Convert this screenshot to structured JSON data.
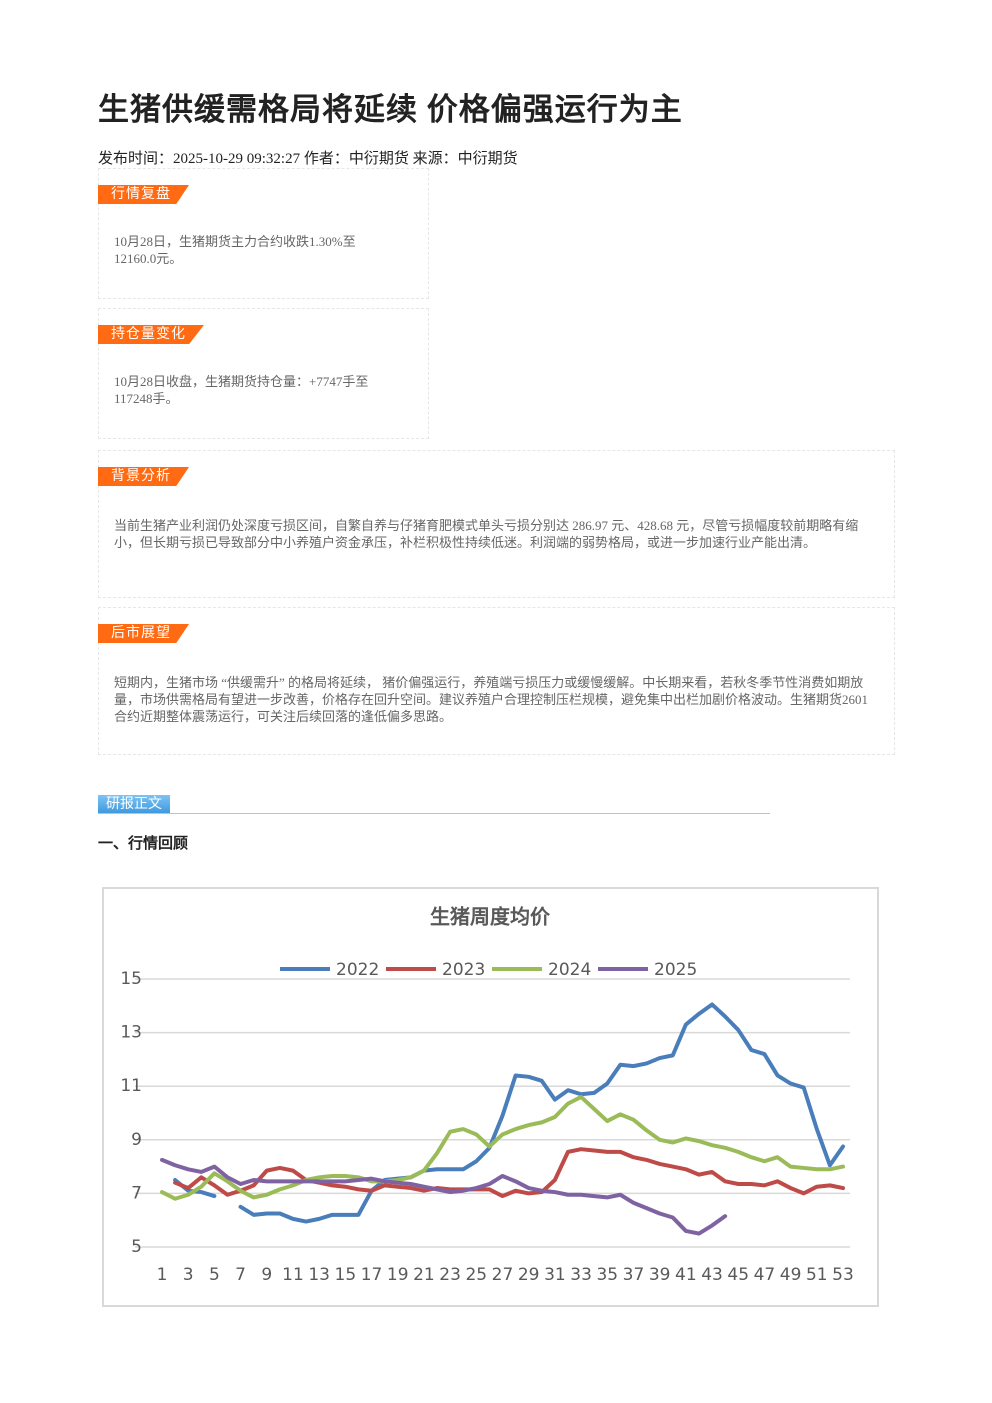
{
  "header": {
    "title": "生猪供缓需格局将延续 价格偏强运行为主",
    "meta": "发布时间：2025-10-29 09:32:27 作者：中衍期货 来源：中衍期货"
  },
  "sections": [
    {
      "tag": "行情复盘",
      "body": "10月28日，生猪期货主力合约收跌1.30%至12160.0元。"
    },
    {
      "tag": "持仓量变化",
      "body": "10月28日收盘，生猪期货持仓量：+7747手至117248手。"
    },
    {
      "tag": "背景分析",
      "body": "当前生猪产业利润仍处深度亏损区间，自繁自养与仔猪育肥模式单头亏损分别达 286.97 元、428.68 元，尽管亏损幅度较前期略有缩小，但长期亏损已导致部分中小养殖户资金承压，补栏积极性持续低迷。利润端的弱势格局，或进一步加速行业产能出清。"
    },
    {
      "tag": "后市展望",
      "body": "短期内，生猪市场 “供缓需升” 的格局将延续， 猪价偏强运行，养殖端亏损压力或缓慢缓解。中长期来看，若秋冬季节性消费如期放量，市场供需格局有望进一步改善，价格存在回升空间。建议养殖户合理控制压栏规模，避免集中出栏加剧价格波动。生猪期货2601合约近期整体震荡运行，可关注后续回落的逢低偏多思路。"
    }
  ],
  "main_tag": "研报正文",
  "subheading": "一、行情回顾",
  "chart_data": {
    "type": "line",
    "title": "生猪周度均价",
    "legend": "top",
    "x": [
      1,
      2,
      3,
      4,
      5,
      6,
      7,
      8,
      9,
      10,
      11,
      12,
      13,
      14,
      15,
      16,
      17,
      18,
      19,
      20,
      21,
      22,
      23,
      24,
      25,
      26,
      27,
      28,
      29,
      30,
      31,
      32,
      33,
      34,
      35,
      36,
      37,
      38,
      39,
      40,
      41,
      42,
      43,
      44,
      45,
      46,
      47,
      48,
      49,
      50,
      51,
      52,
      53
    ],
    "xlim": [
      1,
      53
    ],
    "xticks": [
      1,
      3,
      5,
      7,
      9,
      11,
      13,
      15,
      17,
      19,
      21,
      23,
      25,
      27,
      29,
      31,
      33,
      35,
      37,
      39,
      41,
      43,
      45,
      47,
      49,
      51,
      53
    ],
    "ylim": [
      5,
      15
    ],
    "yticks": [
      5,
      7,
      9,
      11,
      13,
      15
    ],
    "grid": true,
    "series": [
      {
        "name": "2022",
        "color": "#4a7ebb",
        "values": [
          null,
          7.5,
          7.1,
          7.05,
          6.9,
          null,
          6.5,
          6.2,
          6.25,
          6.25,
          6.05,
          5.95,
          6.05,
          6.2,
          6.2,
          6.2,
          7.1,
          7.5,
          7.55,
          7.6,
          7.85,
          7.9,
          7.9,
          7.9,
          8.2,
          8.7,
          9.9,
          11.4,
          11.35,
          11.2,
          10.5,
          10.85,
          10.7,
          10.75,
          11.1,
          11.8,
          11.75,
          11.85,
          12.05,
          12.15,
          13.3,
          13.7,
          14.05,
          13.6,
          13.1,
          12.35,
          12.2,
          11.4,
          11.1,
          10.95,
          9.4,
          8.05,
          8.75
        ]
      },
      {
        "name": "2023",
        "color": "#be4b48",
        "values": [
          null,
          7.4,
          7.2,
          7.6,
          7.3,
          6.95,
          7.1,
          7.3,
          7.85,
          7.95,
          7.85,
          7.5,
          7.4,
          7.3,
          7.25,
          7.15,
          7.1,
          7.3,
          7.25,
          7.2,
          7.1,
          7.2,
          7.15,
          7.15,
          7.15,
          7.15,
          6.9,
          7.1,
          7.0,
          7.05,
          7.5,
          8.55,
          8.65,
          8.6,
          8.55,
          8.55,
          8.35,
          8.25,
          8.1,
          8.0,
          7.9,
          7.7,
          7.8,
          7.45,
          7.35,
          7.35,
          7.3,
          7.45,
          7.2,
          7.0,
          7.25,
          7.3,
          7.2
        ]
      },
      {
        "name": "2024",
        "color": "#9bbb59",
        "values": [
          7.05,
          6.8,
          6.95,
          7.25,
          7.75,
          7.45,
          7.1,
          6.85,
          6.95,
          7.15,
          7.3,
          7.5,
          7.6,
          7.65,
          7.65,
          7.6,
          7.45,
          7.45,
          7.5,
          7.6,
          7.85,
          8.5,
          9.3,
          9.4,
          9.2,
          8.75,
          9.2,
          9.4,
          9.55,
          9.65,
          9.85,
          10.35,
          10.6,
          10.15,
          9.7,
          9.95,
          9.75,
          9.35,
          9.0,
          8.9,
          9.05,
          8.95,
          8.8,
          8.7,
          8.55,
          8.35,
          8.2,
          8.35,
          8.0,
          7.95,
          7.9,
          7.9,
          8.0
        ]
      },
      {
        "name": "2025",
        "color": "#7e62a1",
        "values": [
          8.25,
          8.05,
          7.9,
          7.8,
          8.0,
          7.6,
          7.35,
          7.5,
          7.45,
          7.45,
          7.45,
          7.45,
          7.45,
          7.45,
          7.45,
          7.5,
          7.55,
          7.45,
          7.4,
          7.35,
          7.25,
          7.15,
          7.05,
          7.1,
          7.2,
          7.35,
          7.65,
          7.45,
          7.2,
          7.1,
          7.05,
          6.95,
          6.95,
          6.9,
          6.85,
          6.95,
          6.65,
          6.45,
          6.25,
          6.1,
          5.6,
          5.5,
          5.8,
          6.15,
          null,
          null,
          null,
          null,
          null,
          null,
          null,
          null,
          null
        ]
      }
    ]
  }
}
